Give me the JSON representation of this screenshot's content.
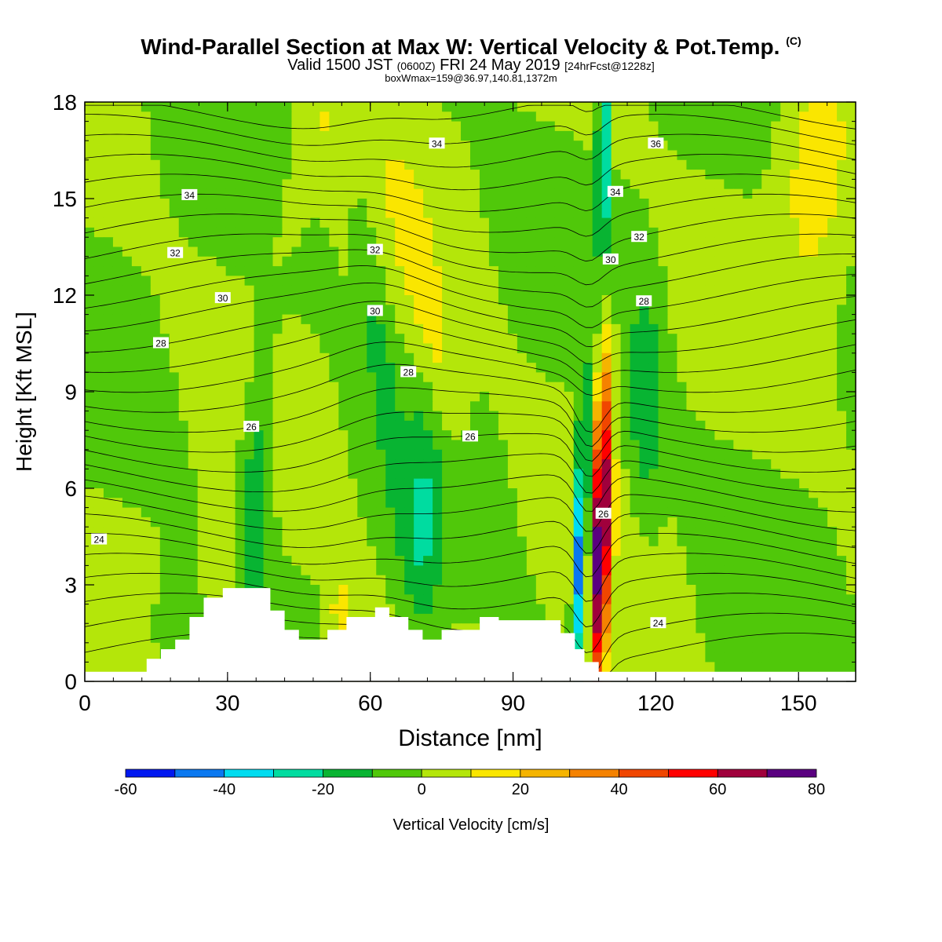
{
  "header": {
    "title": "Wind-Parallel Section at Max W: Vertical Velocity & Pot.Temp.",
    "title_mark": "(C)",
    "valid_prefix": "Valid 1500 JST",
    "valid_utc": "(0600Z)",
    "valid_date": "FRI 24 May 2019",
    "forecast": "[24hrFcst@1228z]",
    "box_info": "boxWmax=159@36.97,140.81,1372m"
  },
  "chart_data": {
    "type": "heatmap",
    "xlabel": "Distance [nm]",
    "ylabel": "Height [Kft MSL]",
    "xlim": [
      0,
      162
    ],
    "ylim": [
      0,
      18
    ],
    "x_ticks": [
      0,
      30,
      60,
      90,
      120,
      150
    ],
    "y_ticks": [
      0,
      3,
      6,
      9,
      12,
      15,
      18
    ],
    "colorbar": {
      "label": "Vertical Velocity [cm/s]",
      "levels": [
        -60,
        -50,
        -40,
        -30,
        -20,
        -10,
        0,
        10,
        20,
        30,
        40,
        50,
        60,
        70,
        80
      ],
      "tick_labels": [
        -60,
        -40,
        -20,
        0,
        20,
        40,
        60,
        80
      ],
      "colors": [
        "#0018f0",
        "#0a78f0",
        "#00dcf0",
        "#00dca0",
        "#08b432",
        "#50c80a",
        "#b4e60a",
        "#fae600",
        "#f5b400",
        "#f58200",
        "#f04600",
        "#ff0000",
        "#a0003c",
        "#5a0080"
      ]
    },
    "vertical_velocity_features": [
      {
        "feature": "background",
        "value": 0
      },
      {
        "feature": "updraft core",
        "x": 108.5,
        "y": 4.5,
        "value": 75
      },
      {
        "feature": "downdraft core",
        "x": 104.5,
        "y": 4.5,
        "value": -55
      },
      {
        "feature": "upper-level downdraft",
        "x": 109,
        "y": 16.5,
        "value": -35
      },
      {
        "feature": "downdraft band",
        "x": 36,
        "y": 6,
        "value": -22
      },
      {
        "feature": "downdraft band",
        "x": 71,
        "y": 4.5,
        "value": -25
      },
      {
        "feature": "downdraft cell",
        "x": 118,
        "y": 8.5,
        "value": -22
      },
      {
        "feature": "updraft band",
        "x": 48,
        "y": 16.5,
        "value": 15
      },
      {
        "feature": "updraft band",
        "x": 72,
        "y": 11.5,
        "value": 15
      },
      {
        "feature": "low-level updraft",
        "x": 54,
        "y": 2,
        "value": 20
      },
      {
        "feature": "low-level updraft",
        "x": 28,
        "y": 3.5,
        "value": 15
      }
    ],
    "terrain": {
      "x": [
        0,
        13,
        16,
        19,
        22,
        25,
        29,
        39,
        42,
        45,
        51,
        55,
        61,
        64,
        68,
        71,
        75,
        83,
        87,
        100,
        103,
        105,
        108,
        110,
        162
      ],
      "height": [
        0.3,
        0.7,
        1.0,
        1.3,
        2.0,
        2.6,
        2.9,
        2.2,
        1.6,
        1.3,
        1.6,
        2.0,
        2.3,
        2.0,
        1.6,
        1.3,
        1.6,
        2.0,
        1.9,
        1.5,
        1.0,
        0.6,
        0.3,
        0.3,
        0.3
      ]
    },
    "theta_contour_labels": [
      {
        "value": "24",
        "x": 3,
        "y": 4.4
      },
      {
        "value": "24",
        "x": 120.5,
        "y": 1.8
      },
      {
        "value": "26",
        "x": 35,
        "y": 7.9
      },
      {
        "value": "26",
        "x": 81,
        "y": 7.6
      },
      {
        "value": "26",
        "x": 109,
        "y": 5.2
      },
      {
        "value": "28",
        "x": 16,
        "y": 10.5
      },
      {
        "value": "28",
        "x": 68,
        "y": 9.6
      },
      {
        "value": "28",
        "x": 117.5,
        "y": 11.8
      },
      {
        "value": "30",
        "x": 29,
        "y": 11.9
      },
      {
        "value": "30",
        "x": 61,
        "y": 11.5
      },
      {
        "value": "30",
        "x": 110.5,
        "y": 13.1
      },
      {
        "value": "32",
        "x": 19,
        "y": 13.3
      },
      {
        "value": "32",
        "x": 61,
        "y": 13.4
      },
      {
        "value": "32",
        "x": 116.5,
        "y": 13.8
      },
      {
        "value": "34",
        "x": 22,
        "y": 15.1
      },
      {
        "value": "34",
        "x": 74,
        "y": 16.7
      },
      {
        "value": "34",
        "x": 111.5,
        "y": 15.2
      },
      {
        "value": "36",
        "x": 120,
        "y": 16.7
      }
    ]
  }
}
